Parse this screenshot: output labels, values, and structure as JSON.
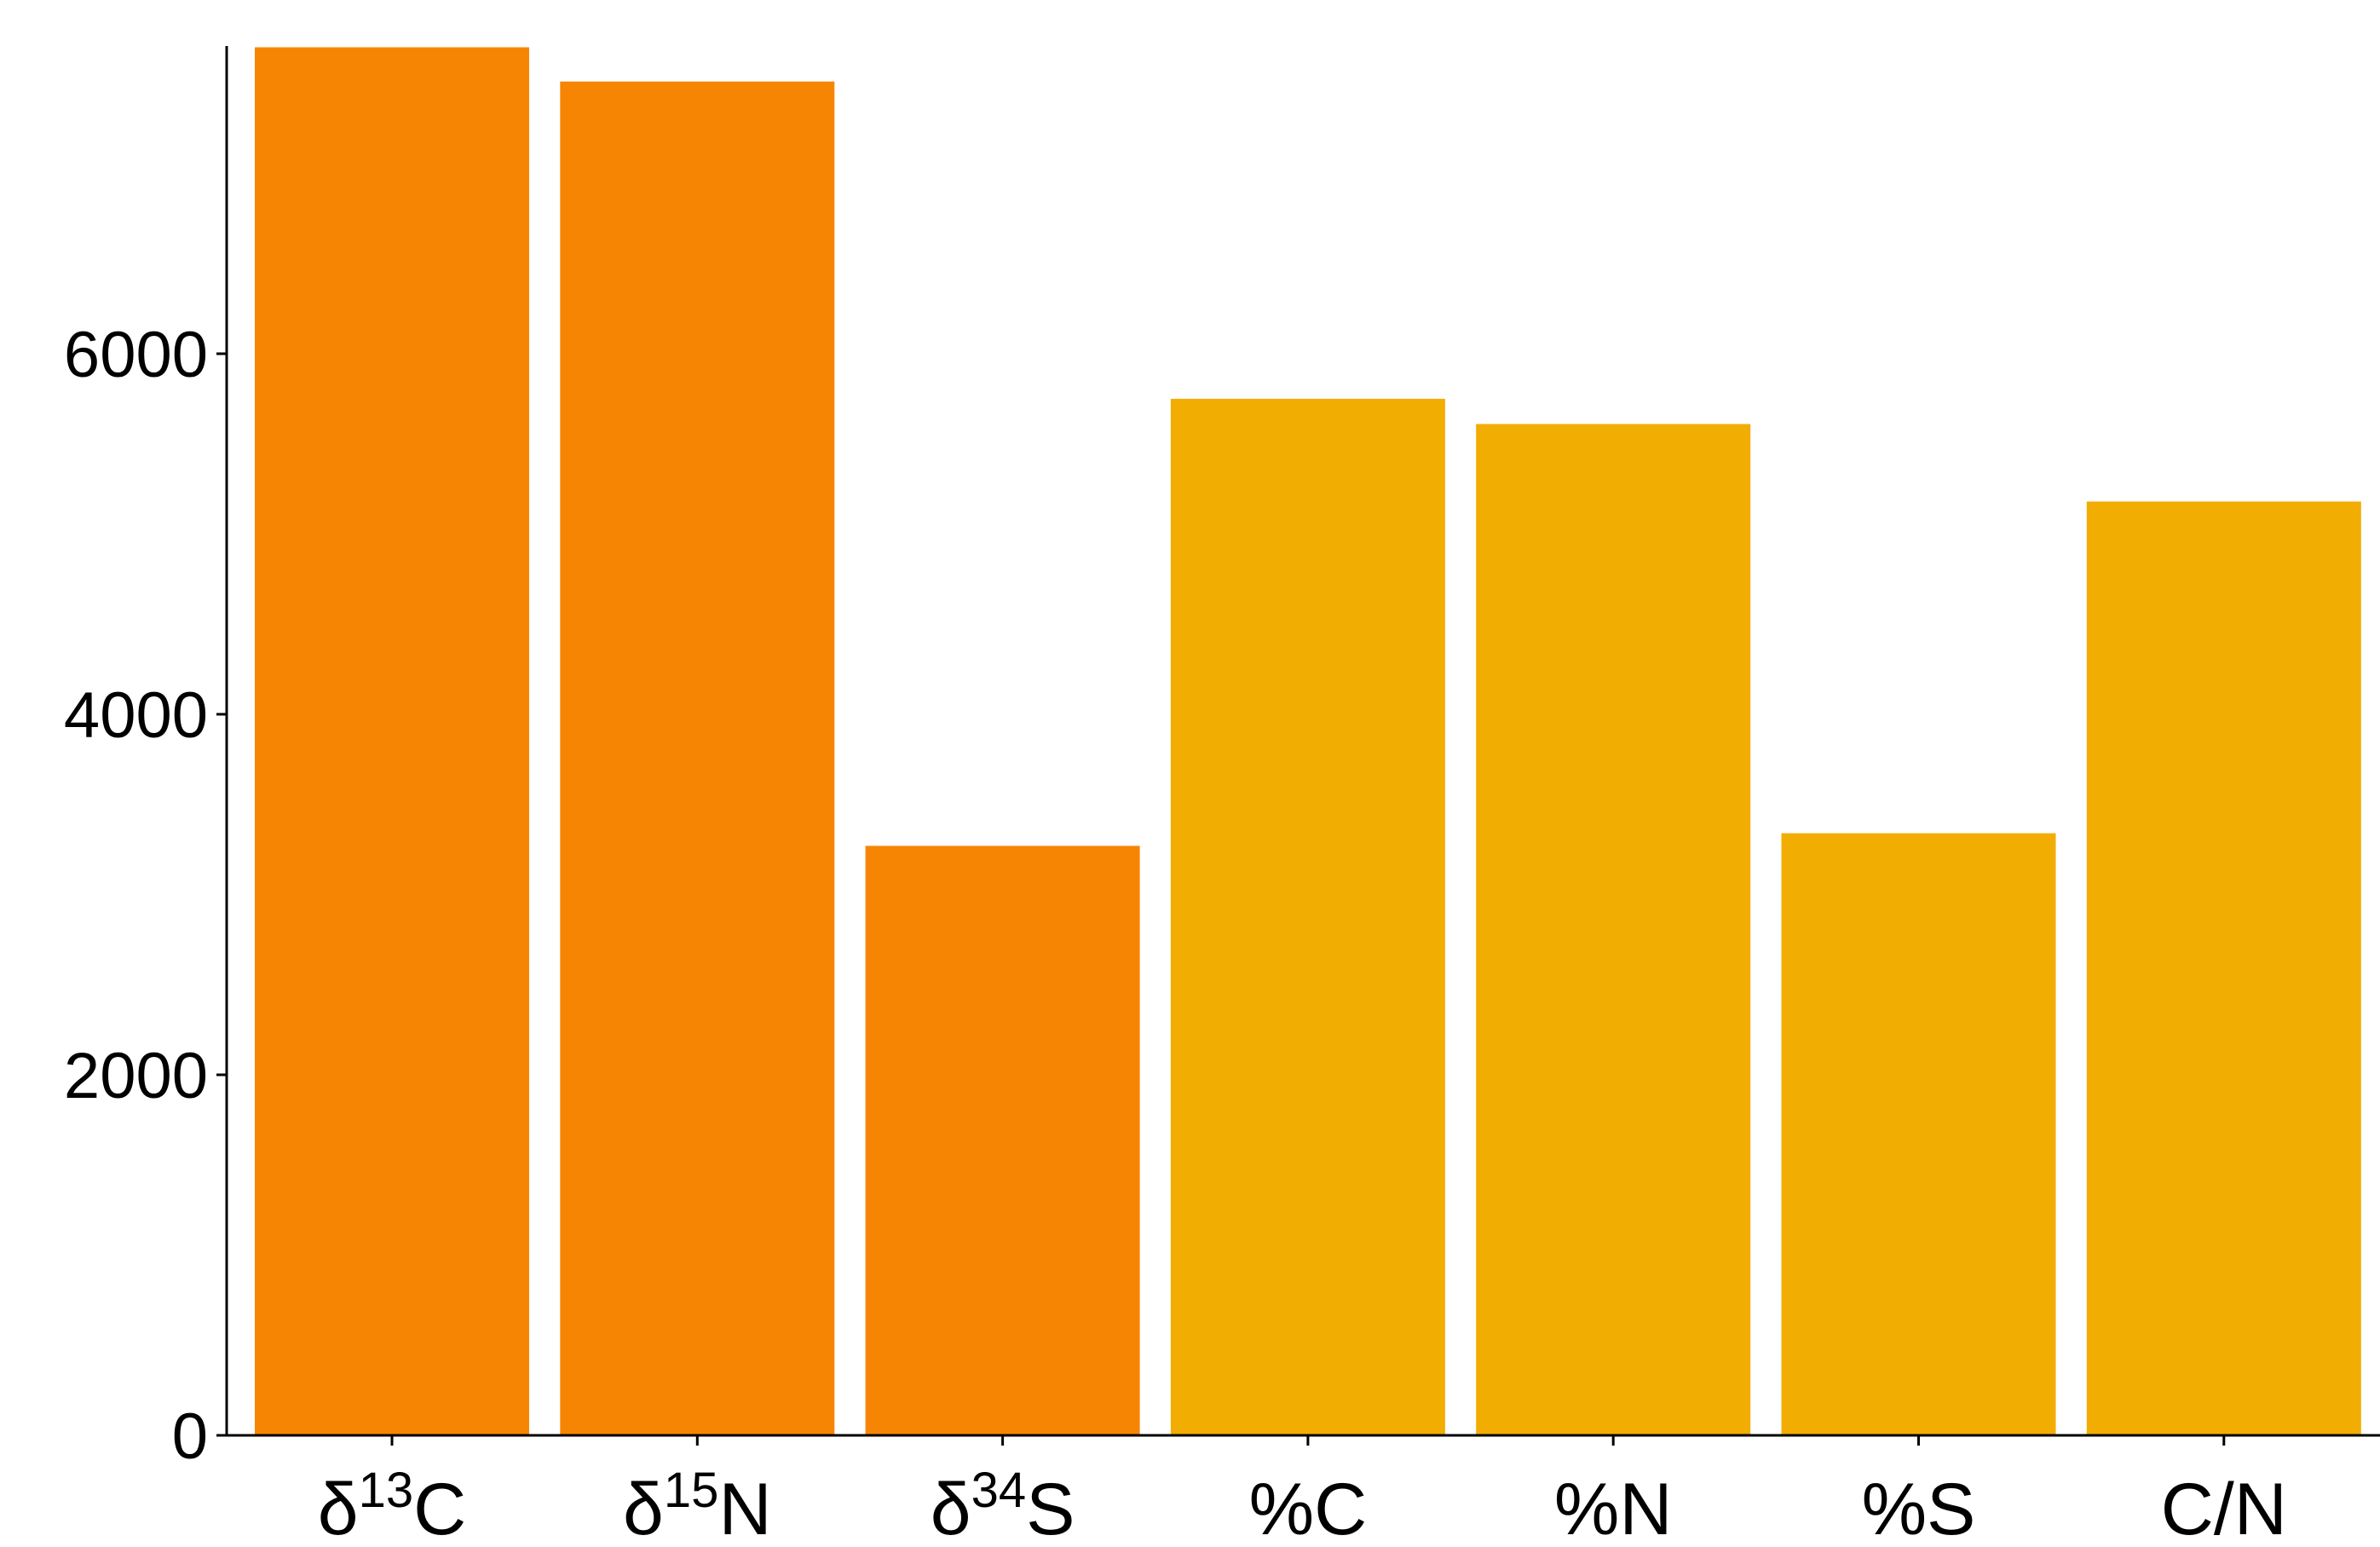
{
  "chart_data": {
    "type": "bar",
    "title": "",
    "xlabel": "",
    "ylabel": "",
    "categories": [
      {
        "base": "δ",
        "sup": "13",
        "tail": "C"
      },
      {
        "base": "δ",
        "sup": "15",
        "tail": "N"
      },
      {
        "base": "δ",
        "sup": "34",
        "tail": "S"
      },
      {
        "base": "%C",
        "sup": "",
        "tail": ""
      },
      {
        "base": "%N",
        "sup": "",
        "tail": ""
      },
      {
        "base": "%S",
        "sup": "",
        "tail": ""
      },
      {
        "base": "C/N",
        "sup": "",
        "tail": ""
      }
    ],
    "values": [
      7700,
      7510,
      3270,
      5750,
      5610,
      3340,
      5180
    ],
    "bar_colors": [
      "#F78504",
      "#F78504",
      "#F78504",
      "#F2AD03",
      "#F2AD03",
      "#F2AD03",
      "#F2AD03"
    ],
    "yticks": [
      0,
      2000,
      4000,
      6000
    ],
    "ytick_labels": [
      "0",
      "2000",
      "4000",
      "6000"
    ],
    "ylim": [
      0,
      7700
    ],
    "grid": false,
    "legend": "none"
  }
}
